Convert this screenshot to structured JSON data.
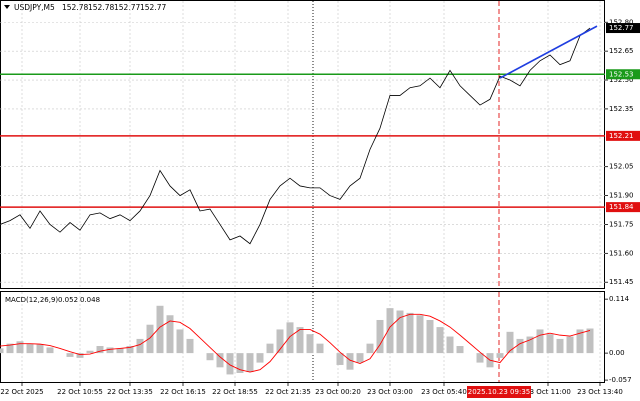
{
  "chart_data": {
    "type": "line",
    "symbol": "USDJPY,M5",
    "ohlc": [
      152.78,
      152.78,
      152.77,
      152.77
    ],
    "color": "#000000",
    "values": [
      151.75,
      151.77,
      151.8,
      151.73,
      151.82,
      151.75,
      151.71,
      151.76,
      151.72,
      151.8,
      151.81,
      151.78,
      151.8,
      151.77,
      151.82,
      151.9,
      152.03,
      151.95,
      151.9,
      151.93,
      151.82,
      151.83,
      151.75,
      151.67,
      151.69,
      151.65,
      151.75,
      151.88,
      151.95,
      151.99,
      151.95,
      151.94,
      151.94,
      151.9,
      151.88,
      151.95,
      151.99,
      152.14,
      152.25,
      152.42,
      152.42,
      152.46,
      152.47,
      152.51,
      152.46,
      152.55,
      152.47,
      152.42,
      152.37,
      152.4,
      152.52,
      152.5,
      152.47,
      152.55,
      152.6,
      152.63,
      152.58,
      152.6,
      152.73,
      152.77
    ],
    "xlim": [
      0,
      60.5
    ],
    "xticks": [
      {
        "value": 2.2,
        "label": "22 Oct 2025"
      },
      {
        "value": 8,
        "label": "22 Oct 10:55"
      },
      {
        "value": 13,
        "label": "22 Oct 13:35"
      },
      {
        "value": 18.3,
        "label": "22 Oct 16:15"
      },
      {
        "value": 23.5,
        "label": "22 Oct 18:55"
      },
      {
        "value": 28.8,
        "label": "22 Oct 21:35"
      },
      {
        "value": 33.8,
        "label": "23 Oct 00:20"
      },
      {
        "value": 39,
        "label": "23 Oct 03:00"
      },
      {
        "value": 44.4,
        "label": "23 Oct 05:40"
      },
      {
        "value": 54.8,
        "label": "23 Oct 11:00"
      },
      {
        "value": 60,
        "label": "23 Oct 13:40"
      }
    ],
    "ylim": [
      151.42,
      152.9
    ],
    "yticks": [
      {
        "value": 152.8,
        "label": "152.80"
      },
      152.65,
      {
        "value": 152.5,
        "label": "152.50"
      },
      152.35,
      152.05,
      {
        "value": 151.9,
        "label": "151.90"
      },
      151.75,
      {
        "value": 151.6,
        "label": "151.60"
      },
      151.45
    ],
    "grid": true,
    "levels": [
      {
        "value": 152.53,
        "color": "#1a9a1a"
      },
      {
        "value": 152.21,
        "color": "#e01010"
      },
      {
        "value": 151.84,
        "color": "#e01010"
      }
    ],
    "trendline": {
      "x": [
        50,
        59.7
      ],
      "values": [
        152.51,
        152.78
      ],
      "color": "#1f3ee0"
    },
    "vlines": [
      {
        "x": 31.3,
        "color": "#000000"
      },
      {
        "x": 49.9,
        "color": "#e01010",
        "label": "2025.10.23 09:35"
      }
    ],
    "macd": {
      "title": "MACD(12,26,9)",
      "histogram_color": "#c0c0c0",
      "signal_color": "#ff0000",
      "histogram": [
        0.01,
        0.02,
        0.025,
        0.02,
        0.018,
        0.012,
        0.0,
        -0.008,
        -0.01,
        0.005,
        0.015,
        0.012,
        0.01,
        0.015,
        0.03,
        0.06,
        0.1,
        0.08,
        0.05,
        0.03,
        0.0,
        -0.015,
        -0.03,
        -0.045,
        -0.042,
        -0.04,
        -0.02,
        0.02,
        0.05,
        0.065,
        0.055,
        0.04,
        0.02,
        0.0,
        -0.025,
        -0.035,
        -0.02,
        0.02,
        0.07,
        0.095,
        0.09,
        0.085,
        0.08,
        0.07,
        0.055,
        0.035,
        0.015,
        0.0,
        -0.02,
        -0.03,
        -0.01,
        0.045,
        0.03,
        0.035,
        0.05,
        0.04,
        0.03,
        0.035,
        0.05,
        0.052
      ],
      "signal": [
        0.015,
        0.017,
        0.02,
        0.02,
        0.019,
        0.016,
        0.01,
        0.003,
        -0.003,
        -0.002,
        0.004,
        0.008,
        0.01,
        0.012,
        0.018,
        0.032,
        0.055,
        0.068,
        0.065,
        0.052,
        0.032,
        0.012,
        -0.008,
        -0.025,
        -0.035,
        -0.04,
        -0.035,
        -0.018,
        0.008,
        0.035,
        0.05,
        0.05,
        0.04,
        0.022,
        0.002,
        -0.015,
        -0.022,
        -0.012,
        0.018,
        0.055,
        0.075,
        0.082,
        0.082,
        0.078,
        0.068,
        0.055,
        0.038,
        0.02,
        0.002,
        -0.015,
        -0.02,
        0.005,
        0.02,
        0.028,
        0.038,
        0.042,
        0.038,
        0.036,
        0.042,
        0.048
      ],
      "ylim": [
        -0.061,
        0.127
      ],
      "yticks": [
        0.114,
        {
          "value": 0,
          "label": "0.00"
        },
        -0.057
      ]
    }
  }
}
